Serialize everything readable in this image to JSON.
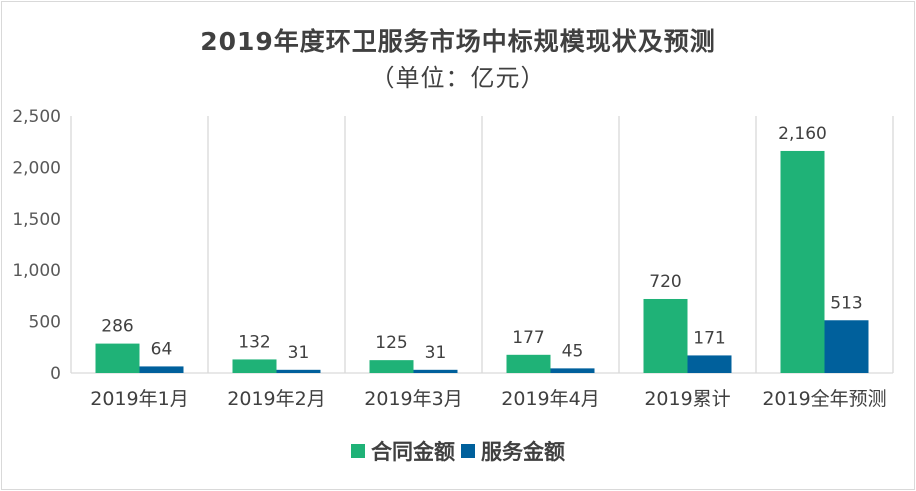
{
  "colors": {
    "contract": "#1fb277",
    "service": "#00609c",
    "grid": "#d9d9d9"
  },
  "chart_data": {
    "type": "bar",
    "title": "2019年度环卫服务市场中标规模现状及预测",
    "subtitle": "（单位：亿元）",
    "categories": [
      "2019年1月",
      "2019年2月",
      "2019年3月",
      "2019年4月",
      "2019累计",
      "2019全年预测"
    ],
    "series": [
      {
        "name": "合同金额",
        "values": [
          286,
          132,
          125,
          177,
          720,
          2160
        ],
        "labels": [
          "286",
          "132",
          "125",
          "177",
          "720",
          "2,160"
        ]
      },
      {
        "name": "服务金额",
        "values": [
          64,
          31,
          31,
          45,
          171,
          513
        ],
        "labels": [
          "64",
          "31",
          "31",
          "45",
          "171",
          "513"
        ]
      }
    ],
    "y_ticks": [
      "0",
      "500",
      "1,000",
      "1,500",
      "2,000",
      "2,500"
    ],
    "ylim": [
      0,
      2500
    ],
    "grid": "vertical category separators",
    "legend": "bottom"
  }
}
